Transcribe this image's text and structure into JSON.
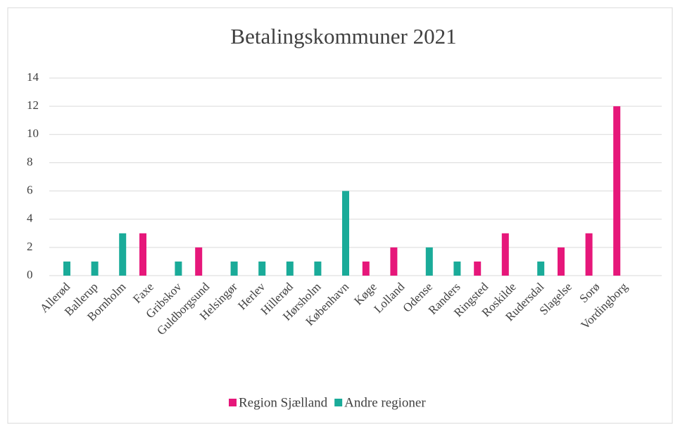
{
  "chart_data": {
    "type": "bar",
    "title": "Betalingskommuner 2021",
    "categories": [
      "Allerød",
      "Ballerup",
      "Bornholm",
      "Faxe",
      "Gribskov",
      "Guldborgsund",
      "Helsingør",
      "Herlev",
      "Hillerød",
      "Hørsholm",
      "København",
      "Køge",
      "Lolland",
      "Odense",
      "Randers",
      "Ringsted",
      "Roskilde",
      "Rudersdal",
      "Slagelse",
      "Sorø",
      "Vordingborg"
    ],
    "series": [
      {
        "name": "Region Sjælland",
        "color": "#e6177a",
        "values": [
          null,
          null,
          null,
          3,
          null,
          2,
          null,
          null,
          null,
          null,
          null,
          1,
          2,
          null,
          null,
          1,
          3,
          null,
          2,
          3,
          12
        ]
      },
      {
        "name": "Andre regioner",
        "color": "#1aab99",
        "values": [
          1,
          1,
          3,
          null,
          1,
          null,
          1,
          1,
          1,
          1,
          6,
          null,
          null,
          2,
          1,
          null,
          null,
          1,
          null,
          null,
          null
        ]
      }
    ],
    "ylim": [
      0,
      14
    ],
    "yticks": [
      0,
      2,
      4,
      6,
      8,
      10,
      12,
      14
    ],
    "grid": true,
    "legend": "bottom"
  }
}
